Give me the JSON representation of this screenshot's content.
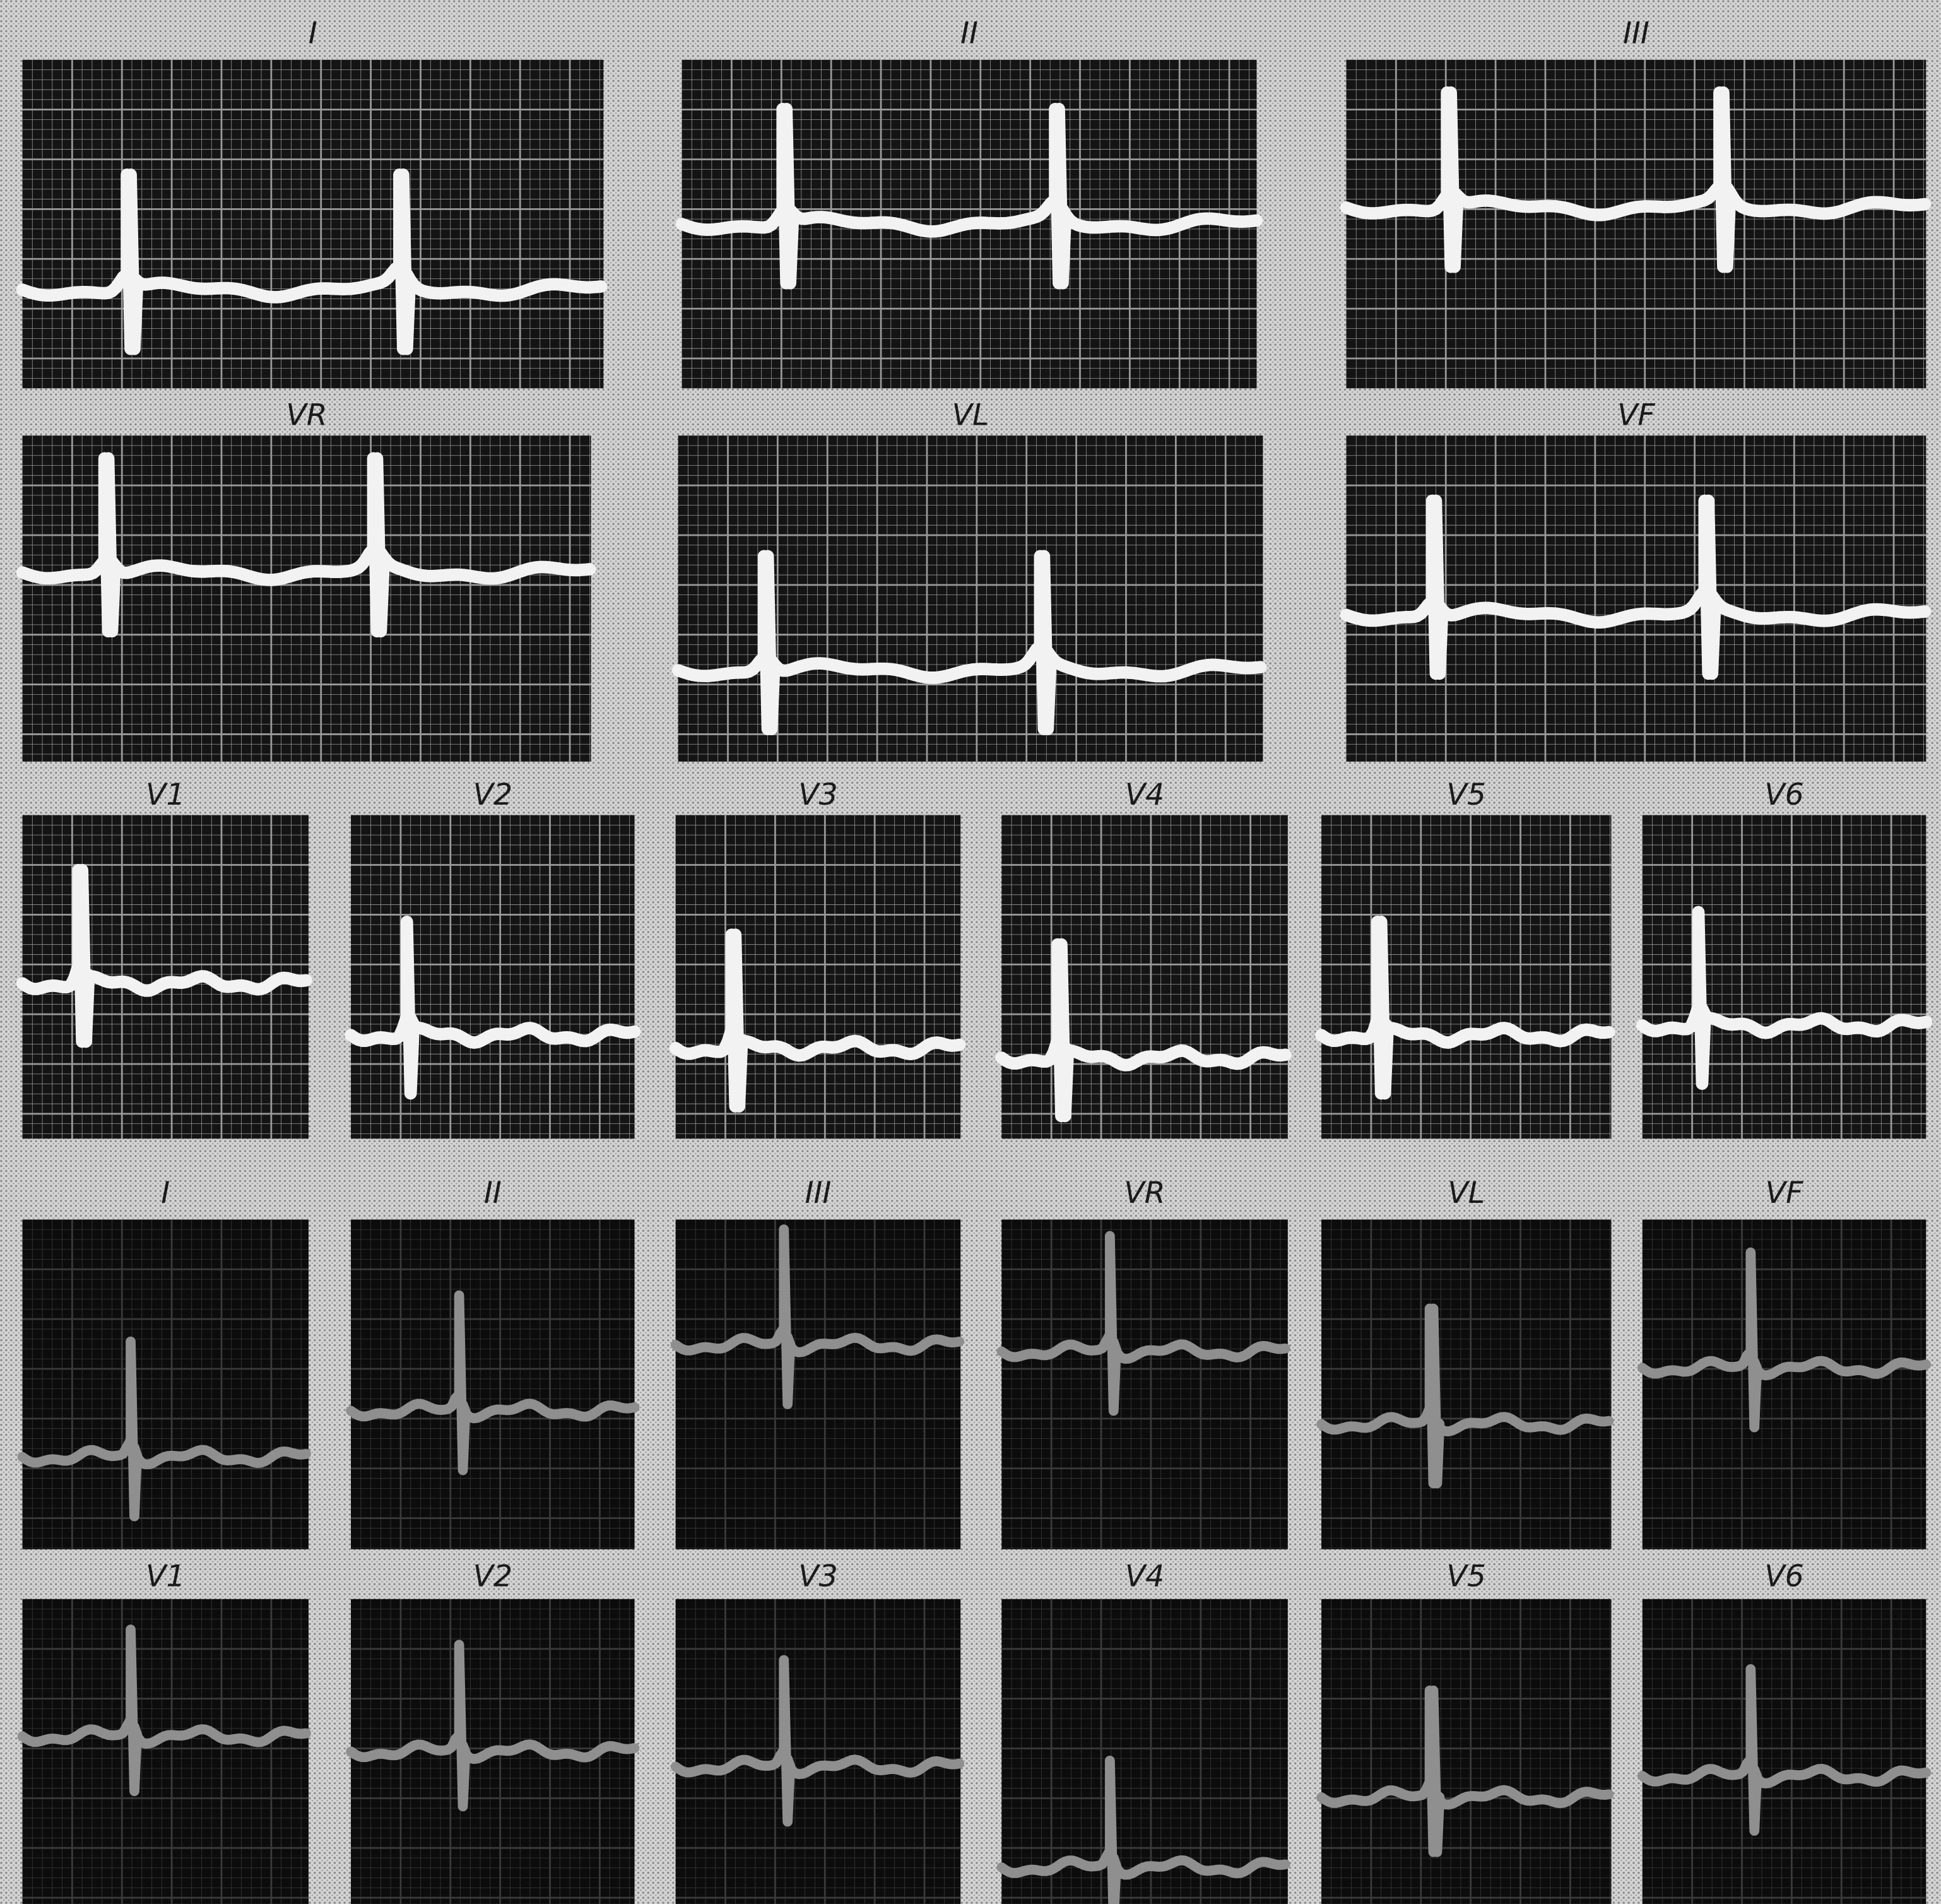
{
  "rows": [
    [
      "I",
      "II",
      "III"
    ],
    [
      "VR",
      "VL",
      "VF"
    ],
    [
      "V1",
      "V2",
      "V3",
      "V4",
      "V5",
      "V6"
    ],
    [
      "I",
      "II",
      "III",
      "VR",
      "VL",
      "VF"
    ],
    [
      "V1",
      "V2",
      "V3",
      "V4",
      "V5",
      "V6"
    ]
  ]
}
